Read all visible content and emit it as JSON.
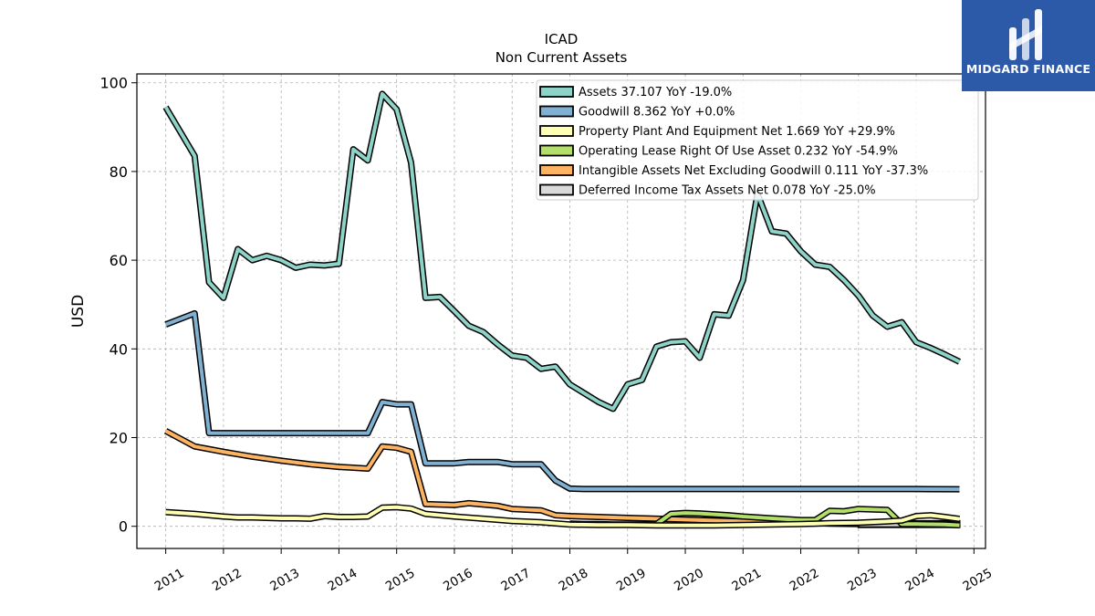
{
  "chart_data": {
    "type": "line",
    "title": "ICAD",
    "subtitle": "Non Current  Assets",
    "ylabel": "USD",
    "xlabel": "",
    "xlim": [
      2010.5,
      2025.2
    ],
    "ylim": [
      -5,
      102
    ],
    "y_ticks": [
      0,
      20,
      40,
      60,
      80,
      100
    ],
    "x_ticks": [
      2011,
      2012,
      2013,
      2014,
      2015,
      2016,
      2017,
      2018,
      2019,
      2020,
      2021,
      2022,
      2023,
      2024,
      2025
    ],
    "grid": true,
    "legend_position": "top-right",
    "series": [
      {
        "name": "Assets  37.107 YoY -19.0%",
        "color": "#8dd3c7",
        "x": [
          2011.0,
          2011.5,
          2011.75,
          2012.0,
          2012.25,
          2012.5,
          2012.75,
          2013.0,
          2013.25,
          2013.5,
          2013.75,
          2014.0,
          2014.25,
          2014.5,
          2014.75,
          2015.0,
          2015.25,
          2015.5,
          2015.75,
          2016.0,
          2016.25,
          2016.5,
          2016.75,
          2017.0,
          2017.25,
          2017.5,
          2017.75,
          2018.0,
          2018.25,
          2018.5,
          2018.75,
          2019.0,
          2019.25,
          2019.5,
          2019.75,
          2020.0,
          2020.25,
          2020.5,
          2020.75,
          2021.0,
          2021.25,
          2021.5,
          2021.75,
          2022.0,
          2022.25,
          2022.5,
          2022.75,
          2023.0,
          2023.25,
          2023.5,
          2023.75,
          2024.0,
          2024.25,
          2024.5,
          2024.75
        ],
        "values": [
          94.5,
          83.5,
          55,
          51.5,
          62.5,
          60,
          61,
          60,
          58.3,
          59,
          58.8,
          59.2,
          85,
          82.5,
          97.5,
          94,
          82,
          51.5,
          51.7,
          48.5,
          45.2,
          43.8,
          41,
          38.5,
          38,
          35.5,
          36,
          32,
          30,
          28,
          26.5,
          32,
          33,
          40.5,
          41.5,
          41.7,
          38,
          47.8,
          47.5,
          55.5,
          75,
          66.5,
          66,
          62,
          59,
          58.5,
          55.5,
          52,
          47.5,
          45,
          46,
          41.5,
          40.2,
          38.7,
          37.1
        ]
      },
      {
        "name": "Goodwill  8.362 YoY +0.0%",
        "color": "#80b1d3",
        "x": [
          2011.0,
          2011.5,
          2011.75,
          2012.0,
          2012.5,
          2013.0,
          2013.5,
          2014.0,
          2014.5,
          2014.75,
          2015.0,
          2015.25,
          2015.5,
          2015.75,
          2016.0,
          2016.25,
          2016.5,
          2016.75,
          2017.0,
          2017.25,
          2017.5,
          2017.75,
          2018.0,
          2018.25,
          2019.0,
          2020.0,
          2021.0,
          2022.0,
          2023.0,
          2024.0,
          2024.75
        ],
        "values": [
          45.5,
          48,
          21,
          21,
          21,
          21,
          21,
          21,
          21,
          28,
          27.5,
          27.5,
          14.2,
          14.2,
          14.2,
          14.5,
          14.5,
          14.5,
          14,
          14,
          14,
          10.3,
          8.5,
          8.4,
          8.4,
          8.4,
          8.4,
          8.4,
          8.4,
          8.4,
          8.36
        ]
      },
      {
        "name": "Property Plant And Equipment Net  1.669 YoY +29.9%",
        "color": "#ffffb3",
        "x": [
          2011.0,
          2011.5,
          2012.0,
          2012.25,
          2012.5,
          2012.75,
          2013.0,
          2013.25,
          2013.5,
          2013.75,
          2014.0,
          2014.25,
          2014.5,
          2014.75,
          2015.0,
          2015.25,
          2015.5,
          2016.0,
          2016.5,
          2017.0,
          2017.5,
          2018.0,
          2018.5,
          2019.0,
          2019.5,
          2020.0,
          2020.5,
          2021.0,
          2021.5,
          2022.0,
          2022.5,
          2023.0,
          2023.5,
          2023.75,
          2024.0,
          2024.25,
          2024.5,
          2024.75
        ],
        "values": [
          3.2,
          2.8,
          2.2,
          2,
          2,
          1.9,
          1.8,
          1.8,
          1.7,
          2.3,
          2.1,
          2.1,
          2.2,
          4.2,
          4.3,
          4,
          2.8,
          2.2,
          1.7,
          1.2,
          0.9,
          0.4,
          0.3,
          0.3,
          0.2,
          0.2,
          0.2,
          0.3,
          0.4,
          0.5,
          0.7,
          0.8,
          1.1,
          1.3,
          2.3,
          2.5,
          2.1,
          1.67
        ]
      },
      {
        "name": "Operating Lease Right Of Use Asset  0.232 YoY -54.9%",
        "color": "#b3de69",
        "x": [
          2018.0,
          2018.25,
          2018.5,
          2018.75,
          2019.0,
          2019.25,
          2019.5,
          2019.75,
          2020.0,
          2020.25,
          2020.5,
          2020.75,
          2021.0,
          2021.25,
          2021.5,
          2021.75,
          2022.0,
          2022.25,
          2022.5,
          2022.75,
          2023.0,
          2023.25,
          2023.5,
          2023.75,
          2024.0,
          2024.25,
          2024.5,
          2024.75
        ],
        "values": [
          0.6,
          0.5,
          0.5,
          0.4,
          0.4,
          0.4,
          0.5,
          2.8,
          3,
          2.9,
          2.7,
          2.5,
          2.2,
          2,
          1.8,
          1.6,
          1.4,
          1.4,
          3.5,
          3.4,
          3.9,
          3.8,
          3.7,
          0.5,
          0.5,
          0.45,
          0.4,
          0.23
        ]
      },
      {
        "name": "Intangible Assets Net Excluding Goodwill  0.111 YoY -37.3%",
        "color": "#fdb462",
        "x": [
          2011.0,
          2011.5,
          2012.0,
          2012.5,
          2013.0,
          2013.5,
          2014.0,
          2014.5,
          2014.75,
          2015.0,
          2015.25,
          2015.5,
          2016.0,
          2016.25,
          2016.75,
          2017.0,
          2017.5,
          2017.75,
          2018.0,
          2018.5,
          2019.0,
          2019.5,
          2020.0,
          2020.5,
          2021.0,
          2021.5,
          2022.0,
          2022.5,
          2023.0
        ],
        "values": [
          21.5,
          18,
          16.8,
          15.7,
          14.8,
          14,
          13.4,
          13,
          18,
          17.7,
          16.8,
          5,
          4.8,
          5.2,
          4.6,
          3.9,
          3.6,
          2.5,
          2.3,
          2.1,
          1.9,
          1.7,
          1.5,
          1.3,
          1.1,
          0.9,
          0.8,
          0.6,
          0.5
        ]
      },
      {
        "name": "Deferred Income Tax Assets Net  0.078 YoY -25.0%",
        "color": "#d9d9d9",
        "x": [
          2023.0,
          2023.25,
          2023.5,
          2023.75,
          2024.0,
          2024.25,
          2024.5,
          2024.75
        ],
        "values": [
          0.2,
          0.2,
          0.2,
          0.2,
          0.2,
          0.2,
          0.1,
          0.08
        ],
        "fill_band": true
      }
    ]
  },
  "logo": {
    "text": "MIDGARD FINANCE",
    "icon": "midgard-logo-icon",
    "bg_color": "#2d5aa8"
  }
}
